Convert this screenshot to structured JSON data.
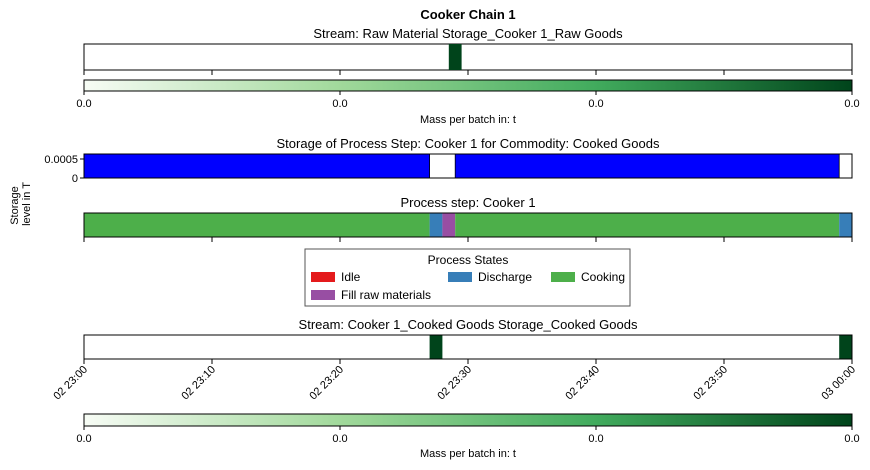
{
  "title": "Cooker Chain 1",
  "chart_data": [
    {
      "type": "heatmap",
      "title": "Stream: Raw Material Storage_Cooker 1_Raw Goods",
      "x_range": [
        "02 23:00",
        "03 00:00"
      ],
      "batches": [
        {
          "start": "02 23:28:30",
          "end": "02 23:29:30",
          "mass_t": 0.0
        }
      ],
      "colorbar": {
        "label": "Mass per batch in: t",
        "ticks": [
          "0.0",
          "0.0",
          "0.0",
          "0.0"
        ],
        "colors": [
          "#f7fcf5",
          "#a1d99b",
          "#41ab5d",
          "#00441b"
        ]
      }
    },
    {
      "type": "area",
      "title": "Storage of Process Step: Cooker 1 for Commodity: Cooked Goods",
      "ylabel": "Storage\nlevel in T",
      "ylim": [
        0,
        0.0005
      ],
      "yticks": [
        "0.0005",
        "0"
      ],
      "color": "#0000ff",
      "segments": [
        {
          "start": "02 23:00",
          "end": "02 23:27",
          "level": 0.0005
        },
        {
          "start": "02 23:29",
          "end": "02 23:59",
          "level": 0.0005
        }
      ]
    },
    {
      "type": "bar",
      "title": "Process step: Cooker 1",
      "intervals": [
        {
          "state": "Cooking",
          "start": "02 23:00",
          "end": "02 23:27"
        },
        {
          "state": "Discharge",
          "start": "02 23:27",
          "end": "02 23:28"
        },
        {
          "state": "Fill raw materials",
          "start": "02 23:28",
          "end": "02 23:29"
        },
        {
          "state": "Cooking",
          "start": "02 23:29",
          "end": "02 23:59"
        },
        {
          "state": "Discharge",
          "start": "02 23:59",
          "end": "03 00:00"
        }
      ],
      "legend": {
        "title": "Process States",
        "placement": "center",
        "entries": [
          {
            "label": "Idle",
            "color": "#e41a1c"
          },
          {
            "label": "Discharge",
            "color": "#377eb8"
          },
          {
            "label": "Cooking",
            "color": "#4daf4a"
          },
          {
            "label": "Fill raw materials",
            "color": "#984ea3"
          }
        ]
      }
    },
    {
      "type": "heatmap",
      "title": "Stream: Cooker 1_Cooked Goods Storage_Cooked Goods",
      "x_range": [
        "02 23:00",
        "03 00:00"
      ],
      "xticks": [
        "02 23:00",
        "02 23:10",
        "02 23:20",
        "02 23:30",
        "02 23:40",
        "02 23:50",
        "03 00:00"
      ],
      "batches": [
        {
          "start": "02 23:27",
          "end": "02 23:28",
          "mass_t": 0.0
        },
        {
          "start": "02 23:59",
          "end": "03 00:00",
          "mass_t": 0.0
        }
      ],
      "colorbar": {
        "label": "Mass per batch in: t",
        "ticks": [
          "0.0",
          "0.0",
          "0.0",
          "0.0"
        ],
        "colors": [
          "#f7fcf5",
          "#a1d99b",
          "#41ab5d",
          "#00441b"
        ]
      }
    }
  ]
}
